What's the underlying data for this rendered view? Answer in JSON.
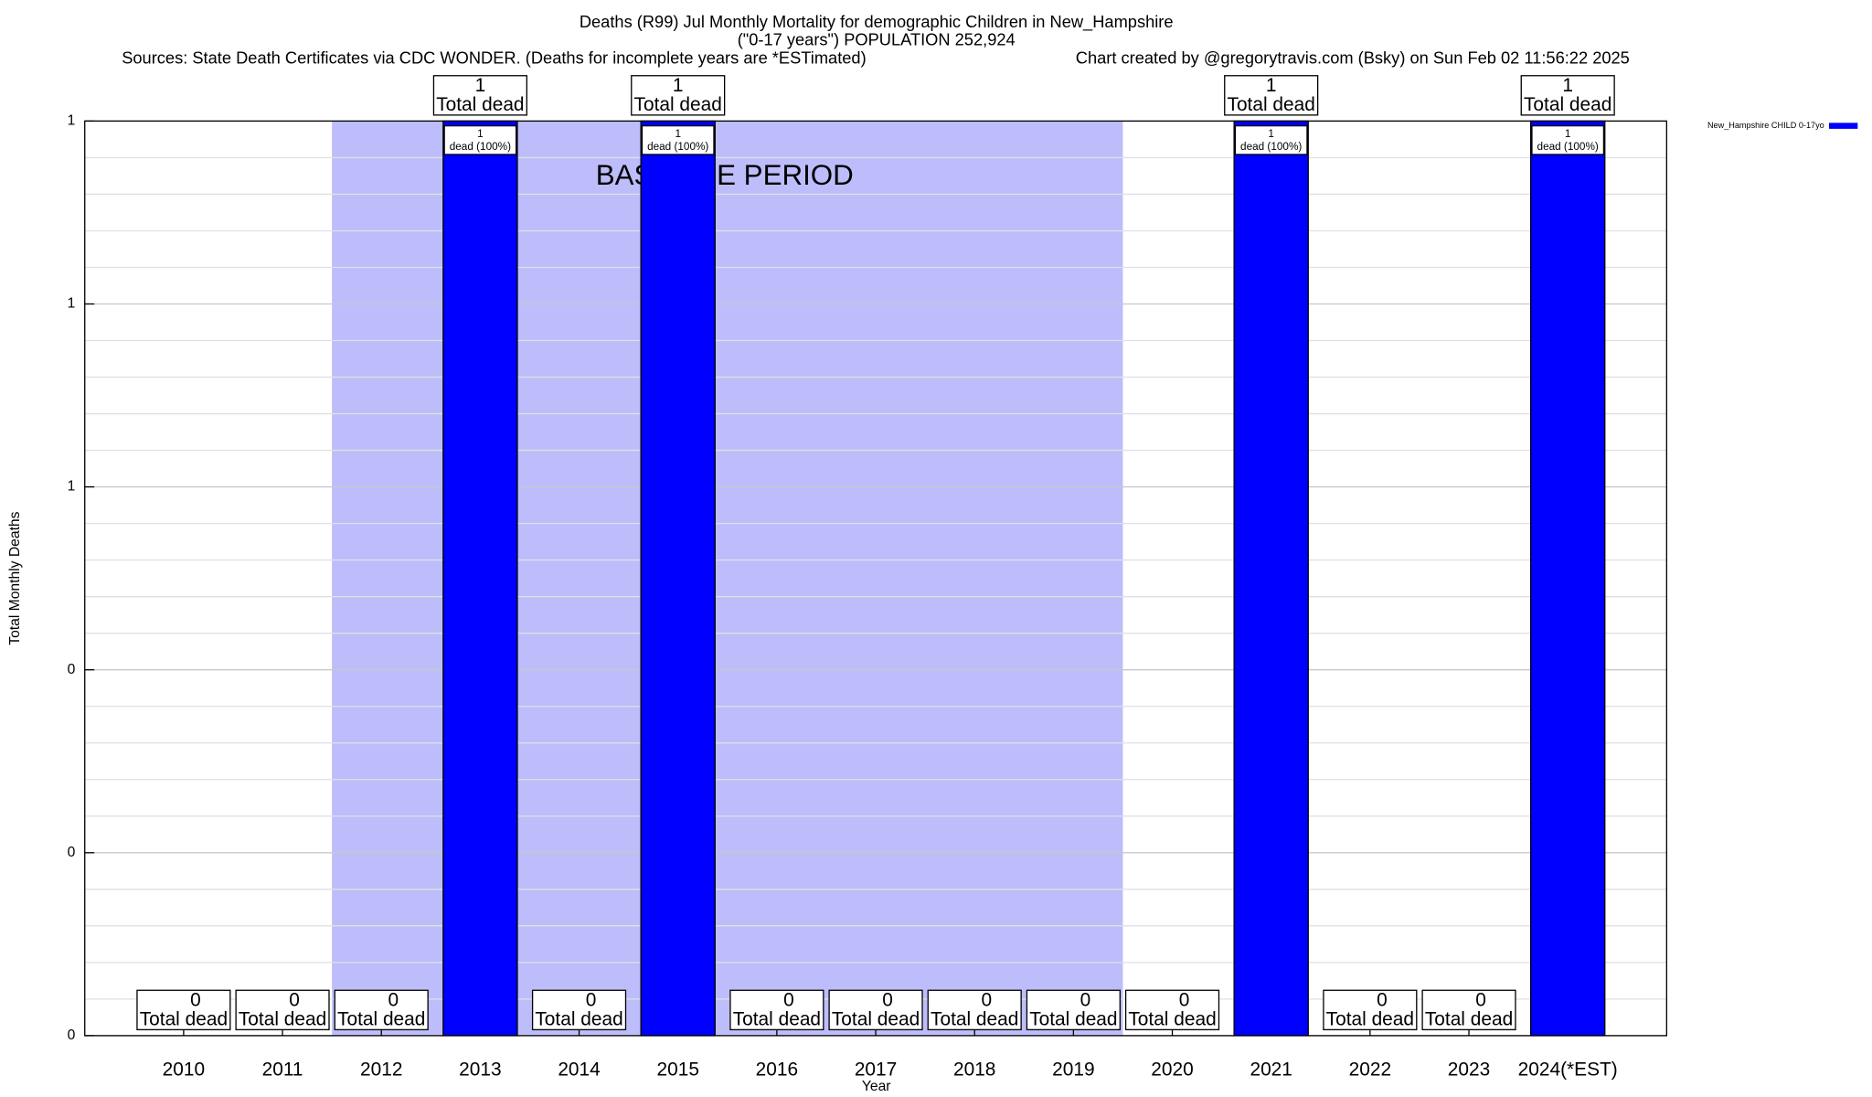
{
  "chart_data": {
    "type": "bar",
    "title": "Deaths (R99) Jul Monthly Mortality for demographic Children in New_Hampshire",
    "subtitle": "(\"0-17 years\") POPULATION 252,924",
    "source": "Sources: State Death Certificates via CDC WONDER. (Deaths for incomplete years are *ESTimated)",
    "credit": "Chart created by @gregorytravis.com (Bsky) on Sun Feb 02 11:56:22 2025",
    "x_label": "Year",
    "y_label": "Total Monthly Deaths",
    "categories": [
      "2010",
      "2011",
      "2012",
      "2013",
      "2014",
      "2015",
      "2016",
      "2017",
      "2018",
      "2019",
      "2020",
      "2021",
      "2022",
      "2023",
      "2024(*EST)"
    ],
    "series": [
      {
        "name": "New_Hampshire CHILD 0-17yo",
        "color": "#0000ff",
        "values": [
          0,
          0,
          0,
          1,
          0,
          1,
          0,
          0,
          0,
          0,
          0,
          1,
          0,
          0,
          1
        ]
      }
    ],
    "total_label": "Total dead",
    "share_label": "dead (100%)",
    "baseline": {
      "label": "BASELINE PERIOD",
      "start": "2012",
      "end": "2019",
      "color": "#bdbdfb"
    },
    "ylim": [
      0,
      1
    ],
    "yticks": [
      0,
      {
        "value": 0.2,
        "label": "0"
      },
      {
        "value": 0.4,
        "label": "0"
      },
      {
        "value": 0.6,
        "label": "1"
      },
      {
        "value": 0.8,
        "label": "1"
      },
      1
    ],
    "grid": true,
    "legend": "top-right"
  }
}
